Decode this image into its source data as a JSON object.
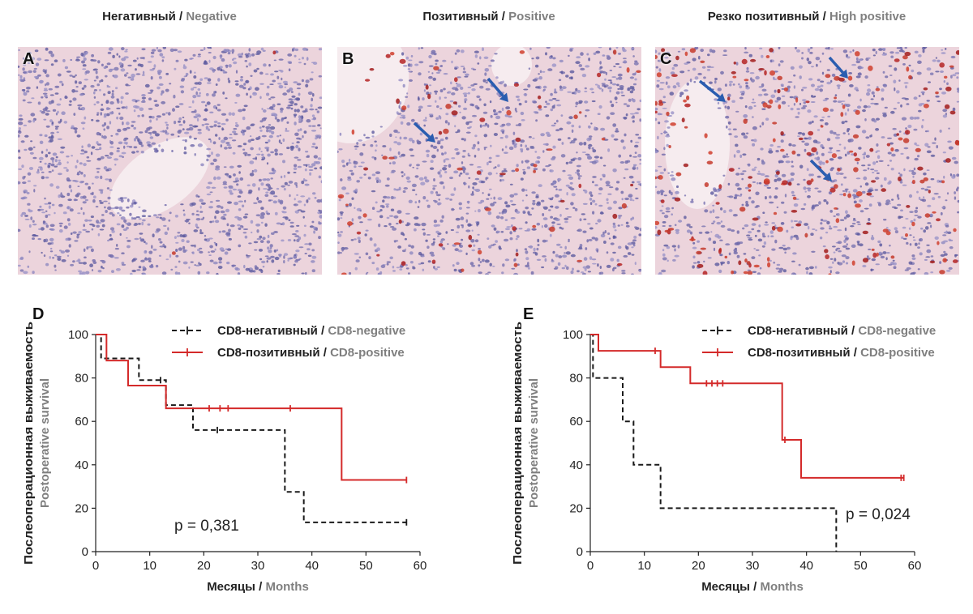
{
  "headers": [
    {
      "ru": "Негативный",
      "en": "Negative"
    },
    {
      "ru": "Позитивный",
      "en": "Positive"
    },
    {
      "ru": "Резко позитивный",
      "en": "High positive"
    }
  ],
  "panel_labels": [
    "A",
    "B",
    "C"
  ],
  "colors": {
    "negative_line": "#1a1a1a",
    "positive_line": "#d42a2a",
    "arrow": "#2a5db0",
    "secondary_text": "#7f7f7f"
  },
  "chart_data": [
    {
      "panel": "D",
      "type": "line",
      "subtype": "kaplan-meier",
      "ylabel_ru": "Послеоперационная выживаемость",
      "ylabel_en": "Postoperative survival",
      "xlabel_ru": "Месяцы",
      "xlabel_en": "Months",
      "xlim": [
        0,
        60
      ],
      "ylim": [
        0,
        100
      ],
      "xticks": [
        0,
        10,
        20,
        30,
        40,
        50,
        60
      ],
      "yticks": [
        0,
        20,
        40,
        60,
        80,
        100
      ],
      "annotation": "p = 0,381",
      "legend_position": "top-right",
      "series": [
        {
          "name": "CD8-негативный / CD8-negative",
          "style": "dashed",
          "x": [
            0,
            1,
            8,
            13,
            18,
            35,
            38.5,
            57.5
          ],
          "y": [
            100,
            89,
            79,
            67.5,
            56,
            27.5,
            13.5,
            13.5
          ],
          "censored_x": [
            12,
            22.5,
            57.5
          ]
        },
        {
          "name": "CD8-позитивный / CD8-positive",
          "style": "solid",
          "x": [
            0,
            2,
            6,
            13,
            45.5,
            57.5
          ],
          "y": [
            100,
            88,
            76.5,
            66,
            33,
            33
          ],
          "censored_x": [
            21,
            23,
            24.5,
            36,
            57.5
          ]
        }
      ]
    },
    {
      "panel": "E",
      "type": "line",
      "subtype": "kaplan-meier",
      "ylabel_ru": "Послеоперационная выживаемость",
      "ylabel_en": "Postoperative survival",
      "xlabel_ru": "Месяцы",
      "xlabel_en": "Months",
      "xlim": [
        0,
        60
      ],
      "ylim": [
        0,
        100
      ],
      "xticks": [
        0,
        10,
        20,
        30,
        40,
        50,
        60
      ],
      "yticks": [
        0,
        20,
        40,
        60,
        80,
        100
      ],
      "annotation": "p = 0,024",
      "legend_position": "top-right",
      "series": [
        {
          "name": "CD8-негативный / CD8-negative",
          "style": "dashed",
          "x": [
            0,
            0.5,
            6,
            8,
            13,
            45.5
          ],
          "y": [
            100,
            80,
            60,
            40,
            20,
            0
          ],
          "censored_x": []
        },
        {
          "name": "CD8-позитивный / CD8-positive",
          "style": "solid",
          "x": [
            0,
            1.5,
            13,
            18.5,
            35.5,
            39,
            58
          ],
          "y": [
            100,
            92.5,
            85,
            77.5,
            51.5,
            34,
            34
          ],
          "censored_x": [
            12,
            21.5,
            22.5,
            23.5,
            24.5,
            36,
            57.5,
            58
          ]
        }
      ]
    }
  ]
}
